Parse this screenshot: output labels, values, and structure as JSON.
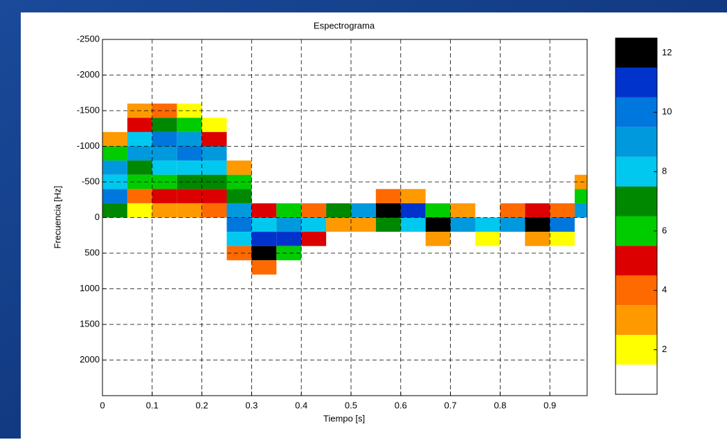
{
  "chart_data": {
    "type": "heatmap",
    "title": "Espectrograma",
    "xlabel": "Tiempo [s]",
    "ylabel": "Frecuencia [Hz]",
    "xbins": [
      0,
      0.05,
      0.1,
      0.15,
      0.2,
      0.25,
      0.3,
      0.35,
      0.4,
      0.45,
      0.5,
      0.55,
      0.6,
      0.65,
      0.7,
      0.75,
      0.8,
      0.85,
      0.9,
      0.95,
      0.975
    ],
    "ybins": [
      -1800,
      -1600,
      -1400,
      -1200,
      -1000,
      -800,
      -600,
      -400,
      -200,
      0,
      200,
      400,
      600,
      800
    ],
    "z": [
      [
        null,
        null,
        null,
        3,
        6,
        9,
        8,
        10,
        7,
        null,
        null,
        null,
        null
      ],
      [
        null,
        3,
        5,
        8,
        9,
        7,
        6,
        4,
        2,
        null,
        null,
        null,
        null
      ],
      [
        null,
        4,
        7,
        10,
        9,
        8,
        6,
        5,
        3,
        null,
        null,
        null,
        null
      ],
      [
        null,
        2,
        6,
        9,
        10,
        8,
        7,
        5,
        3,
        null,
        null,
        null,
        null
      ],
      [
        null,
        null,
        2,
        5,
        9,
        8,
        7,
        5,
        4,
        null,
        null,
        null,
        null
      ],
      [
        null,
        null,
        null,
        null,
        null,
        3,
        6,
        7,
        9,
        10,
        8,
        4,
        null
      ],
      [
        null,
        null,
        null,
        null,
        null,
        null,
        null,
        null,
        5,
        8,
        11,
        12,
        4
      ],
      [
        null,
        null,
        null,
        null,
        null,
        null,
        null,
        null,
        6,
        9,
        11,
        6,
        null
      ],
      [
        null,
        null,
        null,
        null,
        null,
        null,
        null,
        null,
        4,
        8,
        5,
        null,
        null
      ],
      [
        null,
        null,
        null,
        null,
        null,
        null,
        null,
        null,
        7,
        3,
        null,
        null,
        null
      ],
      [
        null,
        null,
        null,
        null,
        null,
        null,
        null,
        null,
        9,
        3,
        null,
        null,
        null
      ],
      [
        null,
        null,
        null,
        null,
        null,
        null,
        null,
        4,
        12,
        7,
        null,
        null,
        null
      ],
      [
        null,
        null,
        null,
        null,
        null,
        null,
        null,
        3,
        11,
        8,
        null,
        null,
        null
      ],
      [
        null,
        null,
        null,
        null,
        null,
        null,
        null,
        null,
        6,
        12,
        3,
        null,
        null
      ],
      [
        null,
        null,
        null,
        null,
        null,
        null,
        null,
        null,
        3,
        9,
        null,
        null,
        null
      ],
      [
        null,
        null,
        null,
        null,
        null,
        null,
        null,
        null,
        null,
        8,
        2,
        null,
        null
      ],
      [
        null,
        null,
        null,
        null,
        null,
        null,
        null,
        null,
        4,
        9,
        null,
        null,
        null
      ],
      [
        null,
        null,
        null,
        null,
        null,
        null,
        null,
        null,
        5,
        12,
        3,
        null,
        null
      ],
      [
        null,
        null,
        null,
        null,
        null,
        null,
        null,
        null,
        4,
        10,
        2,
        null,
        null
      ],
      [
        null,
        null,
        null,
        null,
        null,
        null,
        3,
        6,
        9,
        null,
        null,
        null,
        null
      ]
    ],
    "xlim": [
      0,
      0.975
    ],
    "ylim": [
      2500,
      -2500
    ],
    "xticks": [
      0,
      0.1,
      0.2,
      0.3,
      0.4,
      0.5,
      0.6,
      0.7,
      0.8,
      0.9
    ],
    "yticks": [
      -2500,
      -2000,
      -1500,
      -1000,
      -500,
      0,
      500,
      1000,
      1500,
      2000
    ],
    "grid": true,
    "colorbar": {
      "clim": [
        0.5,
        12.5
      ],
      "ticks": [
        2,
        4,
        6,
        8,
        10,
        12
      ],
      "colors": [
        "#ffffff",
        "#ffff00",
        "#ff9900",
        "#ff6a00",
        "#dd0000",
        "#00cc00",
        "#008800",
        "#00c8ee",
        "#0099dd",
        "#0077dd",
        "#0033cc",
        "#000000"
      ]
    }
  }
}
